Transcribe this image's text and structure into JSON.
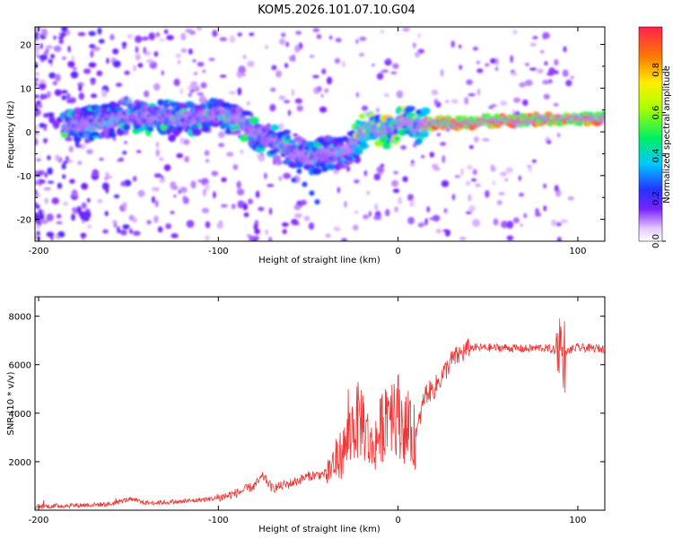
{
  "title": "KOM5.2026.101.07.10.G04",
  "chart_data": [
    {
      "type": "heatmap",
      "xlabel": "Height of straight line (km)",
      "ylabel": "Frequency (Hz)",
      "xlim": [
        -202,
        115
      ],
      "ylim": [
        -25,
        24
      ],
      "xticks": [
        -200,
        -100,
        0,
        100
      ],
      "yticks": [
        -20,
        -10,
        0,
        10,
        20
      ],
      "colorbar": {
        "label": "Normalized spectral amplitude",
        "range": [
          0,
          1
        ],
        "ticks": [
          "0.0",
          "0.2",
          "0.4",
          "0.6",
          "0.8"
        ]
      },
      "ridge": {
        "x": [
          -180,
          -170,
          -160,
          -150,
          -140,
          -130,
          -120,
          -110,
          -100,
          -90,
          -80,
          -70,
          -60,
          -50,
          -40,
          -30,
          -25,
          -20,
          -15,
          -10,
          -5,
          0,
          5,
          10,
          15,
          20,
          30,
          40,
          50,
          60,
          70,
          80,
          90,
          100,
          115
        ],
        "freq": [
          1.5,
          2,
          2.5,
          3.5,
          3,
          3.5,
          3,
          3.5,
          4,
          3,
          0,
          -2,
          -4,
          -6,
          -5,
          -5,
          -3,
          0,
          1,
          0.5,
          0,
          2,
          2.5,
          1,
          1.5,
          2,
          2,
          2,
          2.5,
          2.5,
          2.5,
          3,
          3,
          3,
          3
        ]
      }
    },
    {
      "type": "line",
      "xlabel": "Height of straight line (km)",
      "ylabel": "SNR (10 * v/v)",
      "xlim": [
        -202,
        115
      ],
      "ylim": [
        0,
        8800
      ],
      "xticks": [
        -200,
        -100,
        0,
        100
      ],
      "yticks": [
        2000,
        4000,
        6000,
        8000
      ],
      "series": [
        {
          "name": "SNR",
          "color": "#ee3333",
          "x": [
            -200,
            -180,
            -160,
            -150,
            -140,
            -120,
            -100,
            -90,
            -80,
            -75,
            -70,
            -60,
            -50,
            -40,
            -35,
            -30,
            -25,
            -20,
            -15,
            -10,
            -5,
            0,
            5,
            10,
            15,
            20,
            30,
            40,
            50,
            60,
            70,
            80,
            88,
            90,
            92,
            95,
            100,
            115
          ],
          "y": [
            150,
            200,
            250,
            450,
            300,
            350,
            500,
            700,
            1000,
            1400,
            900,
            1100,
            1400,
            1500,
            2000,
            2500,
            3500,
            3800,
            2500,
            3200,
            4500,
            4000,
            3200,
            3000,
            4800,
            5000,
            6200,
            6700,
            6700,
            6700,
            6650,
            6700,
            6600,
            7000,
            6300,
            6600,
            6700,
            6650
          ]
        }
      ]
    }
  ]
}
